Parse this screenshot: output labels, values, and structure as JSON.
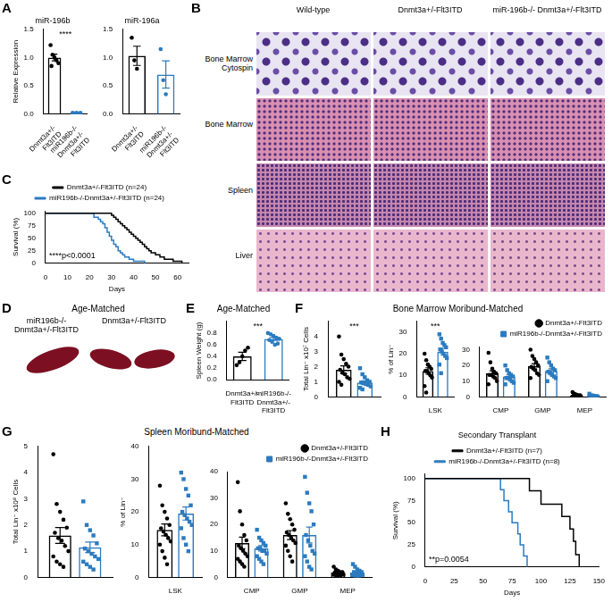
{
  "chart_data": [
    {
      "type": "bar",
      "panel_label": "A",
      "title": "miR-196b",
      "y_label": "Relative Expression",
      "categories": [
        "Dnmt3a+/- Flt3ITD",
        "miR196b-/- Dnmt3a+/- Flt3ITD"
      ],
      "ylim": [
        0,
        1.5
      ],
      "yticks": [
        {
          "value": 0,
          "label": "0.0"
        },
        {
          "value": 0.5,
          "label": "0.5"
        },
        {
          "value": 1,
          "label": "1.0"
        },
        {
          "value": 1.5,
          "label": "1.5"
        }
      ],
      "grid": false,
      "annotations": [
        "****"
      ],
      "series": [
        {
          "colors": [
            "#000000",
            "#2b7bc0"
          ],
          "marker": "circle",
          "values": [
            1.0,
            0.015
          ],
          "errors": [
            0.06,
            0.003
          ],
          "points": [
            [
              1.22,
              1.05,
              1.0,
              0.95,
              0.9,
              0.85
            ],
            [
              0.02,
              0.01,
              0.02,
              0.01,
              0.02,
              0.01
            ]
          ]
        }
      ]
    },
    {
      "type": "bar",
      "title": "miR-196a",
      "categories": [
        "Dnmt3a+/- Flt3ITD",
        "miR196b-/- Dnmt3a+/- Flt3ITD"
      ],
      "ylim": [
        0,
        1.5
      ],
      "yticks": [
        {
          "value": 0,
          "label": "0.0"
        },
        {
          "value": 0.5,
          "label": "0.5"
        },
        {
          "value": 1,
          "label": "1.0"
        },
        {
          "value": 1.5,
          "label": "1.5"
        }
      ],
      "grid": false,
      "series": [
        {
          "colors": [
            "#000000",
            "#2b7bc0"
          ],
          "marker": "circle",
          "values": [
            1.03,
            0.7
          ],
          "errors": [
            0.17,
            0.24
          ],
          "points": [
            [
              1.35,
              0.95,
              0.8
            ],
            [
              1.15,
              0.6,
              0.35
            ]
          ]
        }
      ]
    },
    {
      "type": "line",
      "panel_label": "C",
      "x_label": "Days",
      "y_label": "Survival (%)",
      "xlim": [
        0,
        65
      ],
      "xticks": [
        0,
        10,
        20,
        30,
        40,
        50,
        60
      ],
      "ylim": [
        0,
        105
      ],
      "yticks": [
        0,
        25,
        50,
        75,
        100
      ],
      "grid": false,
      "legend": "top",
      "line_style": "step",
      "annotations": [
        "****p<0.0001"
      ],
      "series": [
        {
          "name": "Dnmt3a+/-Flt3ITD (n=24)",
          "color": "#000000",
          "x": [
            0,
            30,
            31,
            32,
            33,
            34,
            35,
            36,
            37,
            38,
            39,
            40,
            41,
            42,
            43,
            44,
            45,
            46,
            47,
            48,
            50,
            52,
            54,
            58,
            62
          ],
          "values": [
            100,
            96,
            92,
            88,
            83,
            79,
            75,
            71,
            67,
            62,
            58,
            54,
            50,
            46,
            42,
            38,
            33,
            29,
            25,
            21,
            17,
            12.5,
            8,
            4,
            0
          ]
        },
        {
          "name": "miR196b-/-Dnmt3a+/-Flt3ITD (n=24)",
          "color": "#2b7bc0",
          "x": [
            0,
            22,
            24,
            25,
            26,
            27,
            28,
            29,
            30,
            31,
            32,
            33,
            34,
            35,
            36,
            38,
            40,
            45
          ],
          "values": [
            100,
            92,
            88,
            83,
            79,
            71,
            62,
            54,
            46,
            38,
            33,
            25,
            21,
            17,
            12.5,
            8,
            4,
            0
          ]
        }
      ]
    },
    {
      "type": "bar",
      "panel_label": "E",
      "panel_title": "Age-Matched",
      "y_label": "Spleen Weight (g)",
      "categories": [
        "Dnmt3a+/- Flt3ITD",
        "miR196b-/- Dnmt3a+/- Flt3ITD"
      ],
      "ylim": [
        0,
        1
      ],
      "yticks": [
        {
          "value": 0,
          "label": "0.0"
        },
        {
          "value": 0.2,
          "label": "0.2"
        },
        {
          "value": 0.4,
          "label": "0.4"
        },
        {
          "value": 0.6,
          "label": "0.6"
        },
        {
          "value": 0.8,
          "label": "0.8"
        }
      ],
      "grid": false,
      "annotations": [
        "***"
      ],
      "series": [
        {
          "colors": [
            "#000000",
            "#2b7bc0"
          ],
          "marker": "circle",
          "values": [
            0.4,
            0.7
          ],
          "errors": [
            0.07,
            0.025
          ],
          "points": [
            [
              0.25,
              0.3,
              0.4,
              0.5,
              0.55
            ],
            [
              0.8,
              0.78,
              0.75,
              0.72,
              0.7,
              0.68,
              0.65,
              0.6,
              0.62
            ]
          ]
        }
      ]
    },
    {
      "type": "bar",
      "panel_label": "F",
      "panel_title": "Bone Marrow Moribund-Matched",
      "y_label": "Total Lin⁻ x10⁷ Cells",
      "categories": [
        null
      ],
      "ylim": [
        0,
        5
      ],
      "yticks": [
        0,
        1,
        2,
        3,
        4
      ],
      "grid": false,
      "annotations": [
        "***"
      ],
      "series": [
        {
          "color": "#000000",
          "marker": "circle",
          "values": [
            1.8
          ],
          "errors": [
            0.25
          ],
          "points": [
            [
              4.0,
              2.8,
              2.5,
              2.2,
              2.0,
              1.8,
              1.6,
              1.5,
              1.3,
              1.2,
              1.0,
              0.8
            ]
          ]
        },
        {
          "color": "#2b7bc0",
          "marker": "square",
          "values": [
            0.95
          ],
          "errors": [
            0.12
          ],
          "points": [
            [
              1.9,
              1.5,
              1.3,
              1.1,
              1.0,
              0.95,
              0.9,
              0.85,
              0.8,
              0.7,
              0.6,
              0.5
            ]
          ]
        }
      ]
    },
    {
      "type": "bar",
      "y_label": "% of Lin⁻",
      "categories": [
        "LSK"
      ],
      "ylim": [
        0,
        35
      ],
      "yticks": [
        0,
        10,
        20,
        30
      ],
      "grid": false,
      "annotations": [
        "***"
      ],
      "series": [
        {
          "color": "#000000",
          "marker": "circle",
          "values": [
            12
          ],
          "errors": [
            1.5
          ],
          "points": [
            [
              20,
              17,
              15,
              14,
              13,
              12,
              12,
              11,
              10,
              9,
              5,
              2
            ]
          ]
        },
        {
          "color": "#2b7bc0",
          "marker": "square",
          "values": [
            21
          ],
          "errors": [
            1.5
          ],
          "points": [
            [
              29,
              27,
              25,
              24,
              23,
              22,
              21,
              20,
              19,
              18,
              15,
              11
            ]
          ]
        }
      ]
    },
    {
      "type": "bar",
      "categories": [
        "CMP",
        "GMP",
        "MEP"
      ],
      "ylim": [
        0,
        32
      ],
      "yticks": [
        0,
        10,
        20,
        30
      ],
      "grid": false,
      "legend": "top-right",
      "series": [
        {
          "name": "Dnmt3a+/-Flt3ITD",
          "color": "#000000",
          "marker": "circle",
          "values": [
            15,
            19.5,
            1.0
          ],
          "errors": [
            1.6,
            1.7,
            0.3
          ],
          "points": [
            [
              28,
              22,
              18,
              16,
              15,
              14,
              14,
              13,
              12,
              10,
              8
            ],
            [
              30,
              26,
              24,
              22,
              20,
              19,
              18,
              17,
              15,
              14,
              12
            ],
            [
              3,
              2,
              1.5,
              1,
              1,
              0.8,
              0.7,
              0.5,
              0.4,
              0.3,
              0.2
            ]
          ]
        },
        {
          "name": "miR196b-/-Dnmt3a+/-Flt3ITD",
          "color": "#2b7bc0",
          "marker": "square",
          "values": [
            13,
            16.5,
            0.55
          ],
          "errors": [
            1.1,
            1.4,
            0.2
          ],
          "points": [
            [
              20,
              17,
              15,
              14,
              13,
              12,
              12,
              11,
              10,
              9,
              8
            ],
            [
              25,
              22,
              20,
              18,
              17,
              16,
              15,
              14,
              13,
              12,
              10
            ],
            [
              2,
              1,
              0.8,
              0.5,
              0.5,
              0.4,
              0.3,
              0.2,
              0.2,
              0.1,
              0.1
            ]
          ]
        }
      ]
    },
    {
      "type": "bar",
      "panel_label": "G",
      "panel_title": "Spleen Moribund-Matched",
      "y_label": "Total Lin⁻ x10⁸ Cells",
      "categories": [
        null
      ],
      "ylim": [
        0,
        5
      ],
      "yticks": [
        0,
        1,
        2,
        3,
        4,
        5
      ],
      "grid": false,
      "series": [
        {
          "color": "#000000",
          "marker": "circle",
          "values": [
            1.6
          ],
          "errors": [
            0.3
          ],
          "points": [
            [
              4.7,
              2.8,
              2.5,
              2.2,
              1.9,
              1.7,
              1.5,
              1.4,
              1.2,
              1.0,
              0.8,
              0.6,
              0.5,
              0.4
            ]
          ]
        },
        {
          "color": "#2b7bc0",
          "marker": "square",
          "values": [
            1.15
          ],
          "errors": [
            0.2
          ],
          "points": [
            [
              2.9,
              2.0,
              1.8,
              1.6,
              1.3,
              1.1,
              1.0,
              0.9,
              0.8,
              0.7,
              0.6,
              0.5,
              0.4,
              0.3
            ]
          ]
        }
      ]
    },
    {
      "type": "bar",
      "y_label": "% of Lin⁻",
      "categories": [
        "LSK"
      ],
      "ylim": [
        0,
        40
      ],
      "yticks": [
        0,
        10,
        20,
        30,
        40
      ],
      "grid": false,
      "series": [
        {
          "color": "#000000",
          "marker": "circle",
          "values": [
            14.5
          ],
          "errors": [
            1.8
          ],
          "points": [
            [
              28,
              22,
              20,
              18,
              16,
              15,
              14,
              13,
              12,
              11,
              10,
              8,
              6,
              4
            ]
          ]
        },
        {
          "color": "#2b7bc0",
          "marker": "square",
          "values": [
            19.5
          ],
          "errors": [
            2.0
          ],
          "points": [
            [
              32,
              30,
              27,
              25,
              22,
              20,
              19,
              18,
              17,
              16,
              15,
              12,
              10,
              8
            ]
          ]
        }
      ]
    },
    {
      "type": "bar",
      "categories": [
        "CMP",
        "GMP",
        "MEP"
      ],
      "ylim": [
        0,
        40
      ],
      "yticks": [
        0,
        10,
        20,
        30,
        40
      ],
      "grid": false,
      "legend": "top-right",
      "series": [
        {
          "name": "Dnmt3a+/-Flt3ITD",
          "color": "#000000",
          "marker": "circle",
          "values": [
            13,
            16,
            1.8
          ],
          "errors": [
            2.2,
            1.7,
            0.3
          ],
          "points": [
            [
              36,
              25,
              20,
              16,
              14,
              12,
              11,
              10,
              9,
              8,
              7,
              6,
              5,
              4
            ],
            [
              28,
              24,
              22,
              20,
              18,
              17,
              16,
              15,
              14,
              13,
              12,
              10,
              8,
              6
            ],
            [
              4,
              3,
              2.5,
              2,
              2,
              1.8,
              1.5,
              1.5,
              1.2,
              1,
              1,
              0.8,
              0.5,
              0.3
            ]
          ]
        },
        {
          "name": "miR196b-/-Dnmt3a+/-Flt3ITD",
          "color": "#2b7bc0",
          "marker": "square",
          "values": [
            11,
            16,
            1.8
          ],
          "errors": [
            1.0,
            3.0,
            0.4
          ],
          "points": [
            [
              18,
              15,
              14,
              13,
              12,
              11,
              11,
              10,
              10,
              9,
              8,
              7,
              6,
              5
            ],
            [
              38,
              32,
              28,
              25,
              20,
              16,
              14,
              12,
              10,
              9,
              8,
              6,
              4,
              3
            ],
            [
              5,
              4,
              3,
              2.5,
              2,
              2,
              1.5,
              1.5,
              1,
              1,
              0.8,
              0.5,
              0.3,
              0.2
            ]
          ]
        }
      ]
    },
    {
      "type": "line",
      "panel_label": "H",
      "title": "Secondary Transplant",
      "x_label": "Days",
      "y_label": "Survival (%)",
      "xlim": [
        0,
        150
      ],
      "xticks": [
        0,
        25,
        50,
        75,
        100,
        125,
        150
      ],
      "ylim": [
        0,
        105
      ],
      "yticks": [
        0,
        25,
        50,
        75,
        100
      ],
      "grid": false,
      "legend": "top",
      "line_style": "step",
      "annotations": [
        "**p=0.0054"
      ],
      "series": [
        {
          "name": "Dnmt3a+/-Flt3ITD (n=7)",
          "color": "#000000",
          "x": [
            0,
            90,
            100,
            118,
            125,
            128,
            130,
            133
          ],
          "values": [
            100,
            86,
            71,
            57,
            43,
            29,
            14,
            0
          ]
        },
        {
          "name": "miR196b-/-Dnmt3a+/-Flt3ITD (n=8)",
          "color": "#2b7bc0",
          "x": [
            0,
            65,
            68,
            72,
            75,
            80,
            82,
            85,
            88
          ],
          "values": [
            100,
            87.5,
            75,
            62.5,
            50,
            37.5,
            25,
            12.5,
            0
          ]
        }
      ]
    }
  ],
  "image_panels": [
    {
      "panel_label": "B",
      "columns": [
        "Wild-type",
        "Dnmt3a+/-Flt3ITD",
        "miR-196b-/- Dnmt3a+/-Flt3ITD"
      ],
      "rows": [
        "Bone Marrow Cytospin",
        "Bone Marrow",
        "Spleen",
        "Liver"
      ]
    },
    {
      "panel_label": "D",
      "title": "Age-Matched",
      "labels": [
        "miR196b-/- Dnmt3a+/-Flt3ITD",
        "Dnmt3a+/-Flt3ITD"
      ]
    }
  ]
}
